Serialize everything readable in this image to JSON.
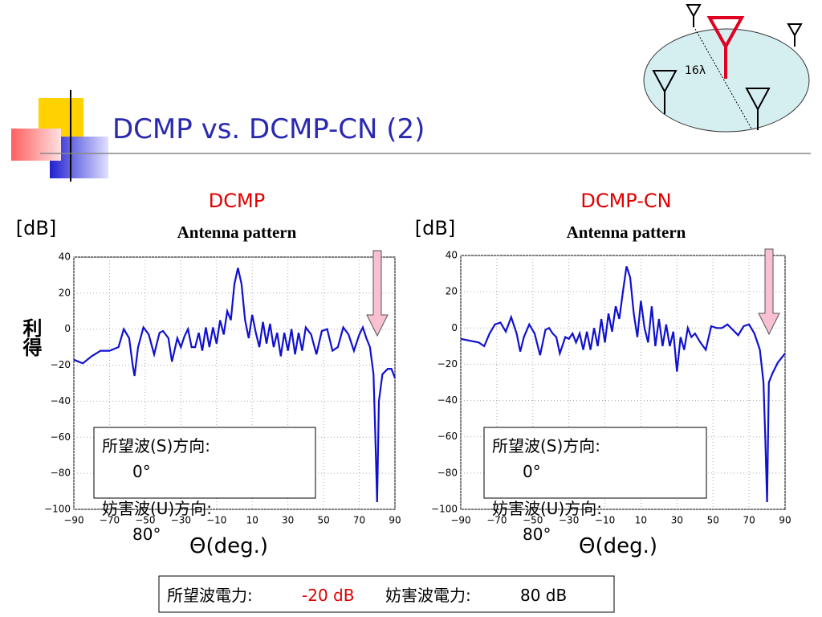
{
  "slide": {
    "title": "DCMP vs. DCMP-CN (2)",
    "side_label": "利得",
    "diagram_label": "16λ",
    "footer": [
      "所望波電力:",
      "-20 dB",
      "妨害波電力:",
      "80 dB"
    ]
  },
  "chart_data": [
    {
      "type": "line",
      "title": "DCMP",
      "subtitle": "Antenna pattern",
      "y_label": "[dB]",
      "x_label": "Θ(deg.)",
      "annotations": [
        "所望波(S)方向:",
        "0°",
        "妨害波(U)方向:",
        "80°"
      ],
      "color": "#1010d0",
      "grid": true,
      "xlim": [
        -90,
        90
      ],
      "ylim": [
        -100,
        40
      ],
      "xticks": [
        {
          "value": -90,
          "label": "−90"
        },
        {
          "value": -70,
          "label": "−70"
        },
        {
          "value": -50,
          "label": "−50"
        },
        {
          "value": -30,
          "label": "−30"
        },
        {
          "value": -10,
          "label": "−10"
        },
        10,
        30,
        50,
        70,
        90
      ],
      "yticks": [
        {
          "value": -100,
          "label": "−100"
        },
        {
          "value": -80,
          "label": "−80"
        },
        {
          "value": -60,
          "label": "−60"
        },
        {
          "value": -40,
          "label": "−40"
        },
        {
          "value": -20,
          "label": "−20"
        },
        0,
        20,
        40
      ],
      "x": [
        -90,
        -85,
        -80,
        -75,
        -70,
        -65,
        -62,
        -59,
        -57,
        -56,
        -54,
        -51,
        -48,
        -45,
        -42,
        -40,
        -37,
        -35,
        -32,
        -30,
        -28,
        -26,
        -24,
        -22,
        -20,
        -18,
        -16,
        -14,
        -12,
        -10,
        -8,
        -6,
        -4,
        -2,
        0,
        2,
        4,
        6,
        8,
        10,
        12,
        14,
        16,
        18,
        20,
        22,
        24,
        26,
        28,
        30,
        32,
        34,
        36,
        38,
        40,
        43,
        46,
        49,
        52,
        55,
        58,
        61,
        64,
        67,
        70,
        72,
        74,
        76,
        78,
        79,
        80,
        81,
        83,
        86,
        88,
        90
      ],
      "values": [
        -17,
        -19,
        -15,
        -12,
        -12,
        -10,
        0,
        -5,
        -20,
        -26,
        -10,
        1,
        -3,
        -14,
        -2,
        -1,
        -5,
        -18,
        -5,
        -10,
        -4,
        0,
        -10,
        -10,
        -2,
        -12,
        1,
        -10,
        1,
        -8,
        5,
        -3,
        10,
        5,
        25,
        34,
        25,
        5,
        -5,
        8,
        -2,
        -10,
        4,
        -8,
        3,
        -10,
        -2,
        -15,
        -2,
        -12,
        0,
        -14,
        -2,
        -12,
        1,
        -3,
        -14,
        -1,
        0,
        -12,
        -10,
        1,
        -3,
        -12,
        -3,
        1,
        -5,
        -10,
        -25,
        -60,
        -96,
        -40,
        -25,
        -22,
        -22,
        -27
      ]
    },
    {
      "type": "line",
      "title": "DCMP-CN",
      "subtitle": "Antenna pattern",
      "y_label": "[dB]",
      "x_label": "Θ(deg.)",
      "annotations": [
        "所望波(S)方向:",
        "0°",
        "妨害波(U)方向:",
        "80°"
      ],
      "color": "#1010d0",
      "grid": true,
      "xlim": [
        -90,
        90
      ],
      "ylim": [
        -100,
        40
      ],
      "xticks": [
        {
          "value": -90,
          "label": "−90"
        },
        {
          "value": -70,
          "label": "−70"
        },
        {
          "value": -50,
          "label": "−50"
        },
        {
          "value": -30,
          "label": "−30"
        },
        {
          "value": -10,
          "label": "−10"
        },
        10,
        30,
        50,
        70,
        90
      ],
      "yticks": [
        {
          "value": -100,
          "label": "−100"
        },
        {
          "value": -80,
          "label": "−80"
        },
        {
          "value": -60,
          "label": "−60"
        },
        {
          "value": -40,
          "label": "−40"
        },
        {
          "value": -20,
          "label": "−20"
        },
        0,
        20,
        40
      ],
      "x": [
        -90,
        -85,
        -80,
        -77,
        -74,
        -71,
        -68,
        -65,
        -62,
        -59,
        -57,
        -55,
        -52,
        -49,
        -46,
        -43,
        -41,
        -39,
        -37,
        -35,
        -32,
        -30,
        -28,
        -26,
        -24,
        -22,
        -20,
        -18,
        -16,
        -14,
        -12,
        -10,
        -8,
        -6,
        -4,
        -2,
        0,
        2,
        4,
        6,
        8,
        10,
        12,
        14,
        16,
        18,
        20,
        22,
        24,
        26,
        28,
        30,
        32,
        34,
        36,
        38,
        40,
        43,
        46,
        49,
        52,
        55,
        58,
        61,
        64,
        67,
        70,
        73,
        76,
        78,
        79,
        80,
        81,
        83,
        86,
        90
      ],
      "values": [
        -6,
        -7,
        -8,
        -10,
        -3,
        2,
        3,
        -2,
        6,
        -3,
        -13,
        -5,
        2,
        -3,
        -15,
        -1,
        0,
        -3,
        -5,
        -14,
        -5,
        -6,
        -3,
        -8,
        -3,
        -12,
        -2,
        -12,
        0,
        -10,
        5,
        -8,
        8,
        -2,
        12,
        5,
        20,
        34,
        28,
        8,
        -5,
        15,
        0,
        -8,
        12,
        -10,
        5,
        -10,
        2,
        -10,
        -2,
        -24,
        -5,
        -12,
        0,
        -5,
        -3,
        -8,
        -12,
        1,
        0,
        0,
        2,
        -1,
        -4,
        1,
        2,
        -3,
        -12,
        -30,
        -60,
        -96,
        -30,
        -25,
        -19,
        -14
      ]
    }
  ]
}
